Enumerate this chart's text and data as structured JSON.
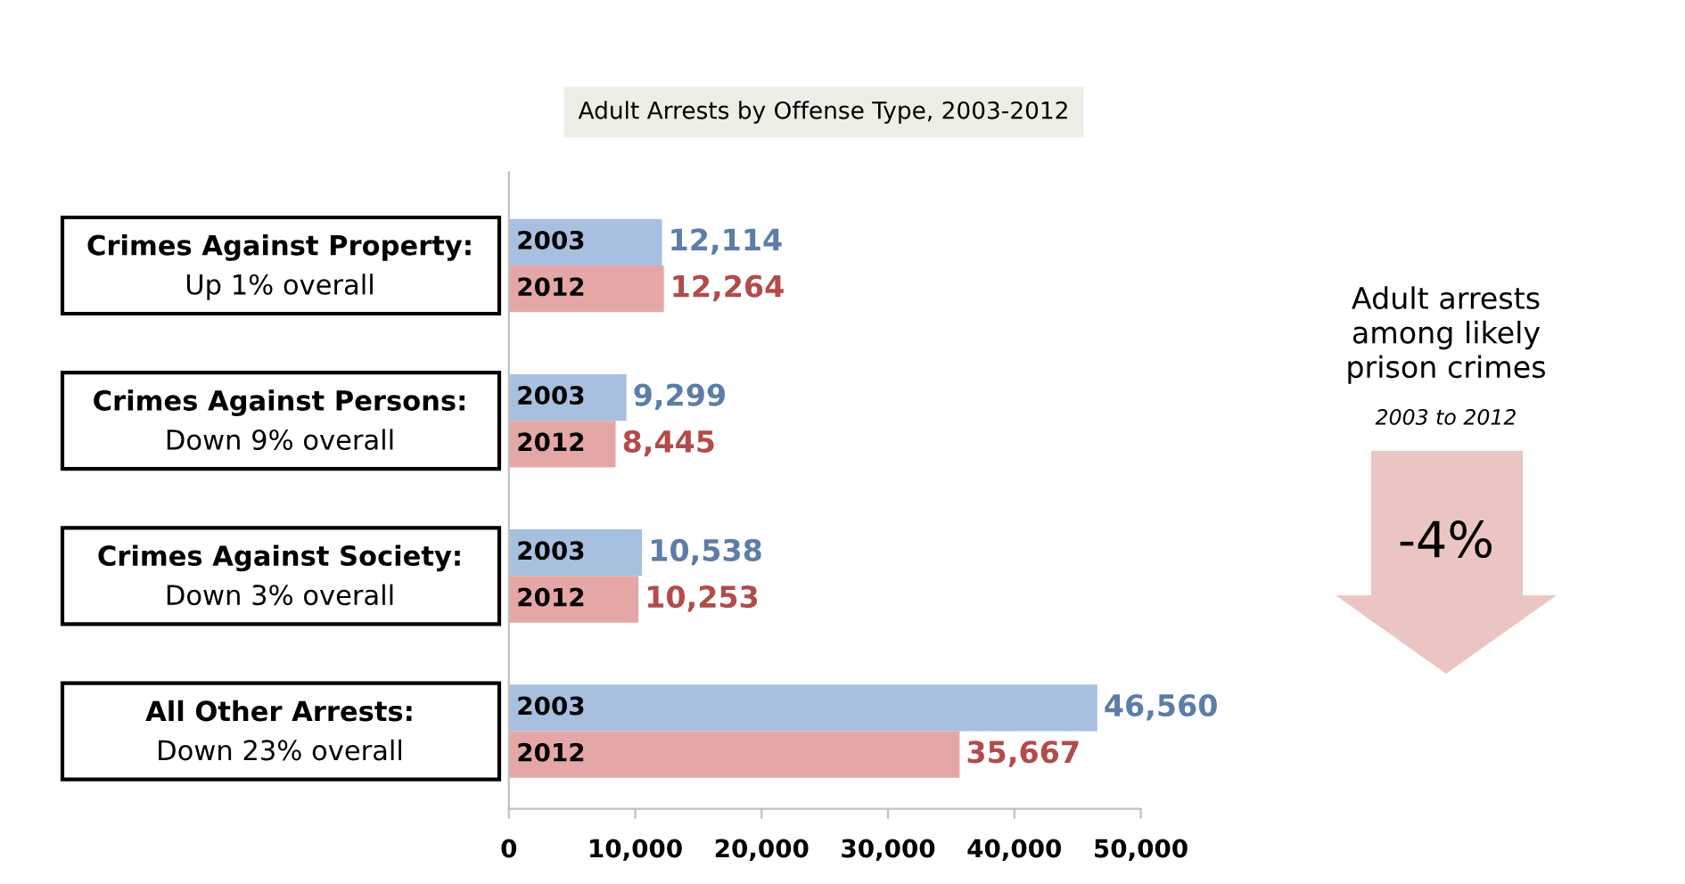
{
  "chart_data": {
    "type": "bar",
    "orientation": "horizontal",
    "title": "Adult Arrests by Offense Type, 2003-2012",
    "categories": [
      "Crimes Against Property:\nUp 1% overall",
      "Crimes Against Persons:\nDown 9% overall",
      "Crimes Against Society:\nDown 3% overall",
      "All Other Arrests:\nDown 23% overall"
    ],
    "series": [
      {
        "name": "2003",
        "color": "#a7c0e0",
        "values": [
          12114,
          9299,
          10538,
          46560
        ],
        "value_labels": [
          "12,114",
          "9,299",
          "10,538",
          "46,560"
        ]
      },
      {
        "name": "2012",
        "color": "#e5a7a6",
        "values": [
          12264,
          8445,
          10253,
          35667
        ],
        "value_labels": [
          "12,264",
          "8,445",
          "10,253",
          "35,667"
        ]
      }
    ],
    "xlim": [
      0,
      50000
    ],
    "xticks": [
      0,
      {
        "value": 10000,
        "label": "10,000"
      },
      {
        "value": 20000,
        "label": "20,000"
      },
      {
        "value": 30000,
        "label": "30,000"
      },
      {
        "value": 40000,
        "label": "40,000"
      },
      {
        "value": 50000,
        "label": "50,000"
      }
    ],
    "grid": false,
    "legend": false,
    "annotations": [
      "Adult arrests\namong likely\nprison crimes",
      "2003 to 2012",
      "-4%"
    ]
  }
}
